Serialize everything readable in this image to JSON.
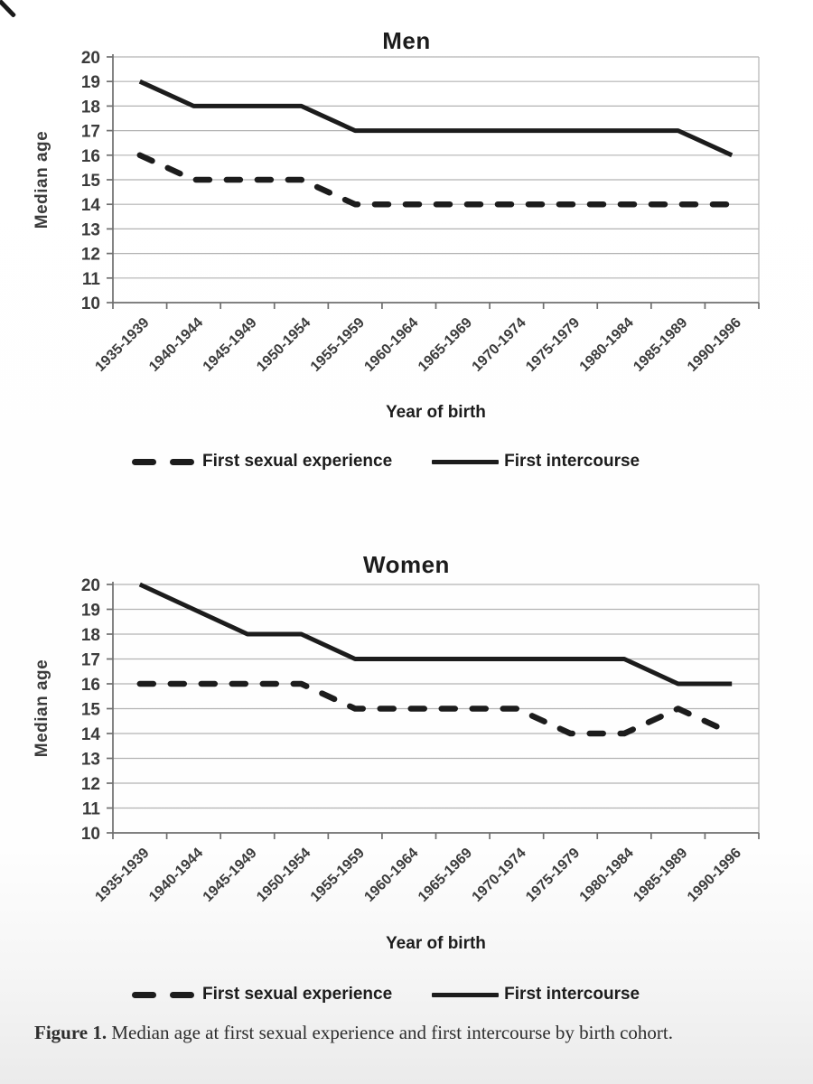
{
  "figure": {
    "caption_label": "Figure 1.",
    "caption_text": "Median age at first sexual experience and first intercourse by birth cohort."
  },
  "colors": {
    "line": "#1c1c1c",
    "grid": "#b3b3b3",
    "axis": "#6f6f6f",
    "tick_text": "#3b3b3b"
  },
  "chart_data": [
    {
      "type": "line",
      "title": "Men",
      "xlabel": "Year of birth",
      "ylabel": "Median age",
      "ylim": [
        10,
        20
      ],
      "ytick_step": 1,
      "grid": true,
      "legend_position": "bottom",
      "categories": [
        "1935-1939",
        "1940-1944",
        "1945-1949",
        "1950-1954",
        "1955-1959",
        "1960-1964",
        "1965-1969",
        "1970-1974",
        "1975-1979",
        "1980-1984",
        "1985-1989",
        "1990-1996"
      ],
      "series": [
        {
          "name": "First sexual experience",
          "style": "dashed",
          "values": [
            16,
            15,
            15,
            15,
            14,
            14,
            14,
            14,
            14,
            14,
            14,
            14
          ]
        },
        {
          "name": "First intercourse",
          "style": "solid",
          "values": [
            19,
            18,
            18,
            18,
            17,
            17,
            17,
            17,
            17,
            17,
            17,
            16
          ]
        }
      ]
    },
    {
      "type": "line",
      "title": "Women",
      "xlabel": "Year of birth",
      "ylabel": "Median age",
      "ylim": [
        10,
        20
      ],
      "ytick_step": 1,
      "grid": true,
      "legend_position": "bottom",
      "categories": [
        "1935-1939",
        "1940-1944",
        "1945-1949",
        "1950-1954",
        "1955-1959",
        "1960-1964",
        "1965-1969",
        "1970-1974",
        "1975-1979",
        "1980-1984",
        "1985-1989",
        "1990-1996"
      ],
      "series": [
        {
          "name": "First sexual experience",
          "style": "dashed",
          "values": [
            16,
            16,
            16,
            16,
            15,
            15,
            15,
            15,
            14,
            14,
            15,
            14
          ]
        },
        {
          "name": "First intercourse",
          "style": "solid",
          "values": [
            20,
            19,
            18,
            18,
            17,
            17,
            17,
            17,
            17,
            17,
            16,
            16
          ]
        }
      ]
    }
  ]
}
